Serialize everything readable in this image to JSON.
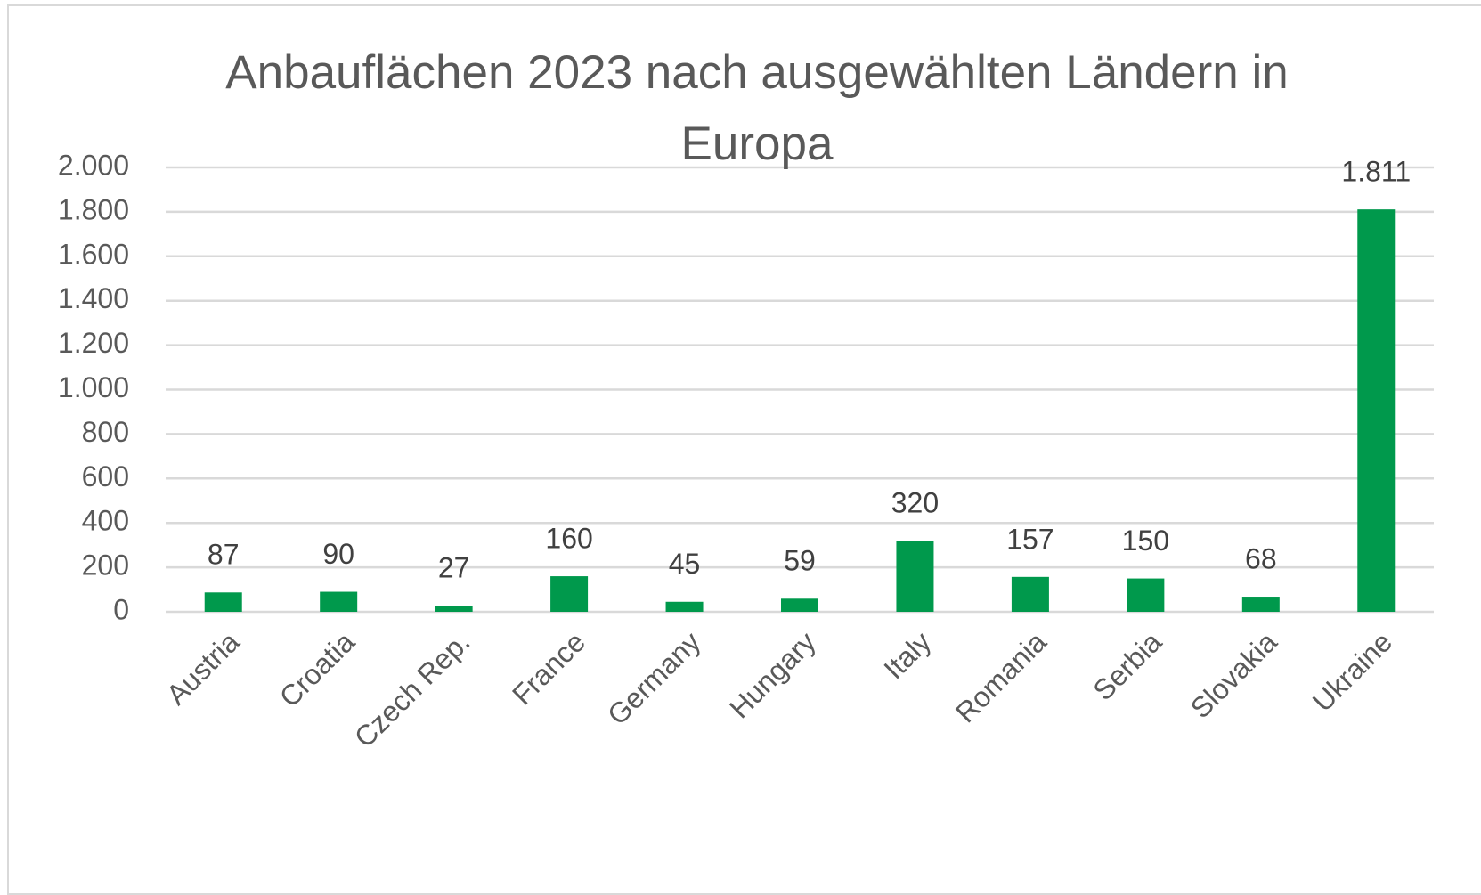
{
  "chart_data": {
    "type": "bar",
    "title": "Anbauflächen 2023 nach ausgewählten Ländern in Europa",
    "categories": [
      "Austria",
      "Croatia",
      "Czech Rep.",
      "France",
      "Germany",
      "Hungary",
      "Italy",
      "Romania",
      "Serbia",
      "Slovakia",
      "Ukraine"
    ],
    "values": [
      87,
      90,
      27,
      160,
      45,
      59,
      320,
      157,
      150,
      68,
      1811
    ],
    "value_labels": [
      "87",
      "90",
      "27",
      "160",
      "45",
      "59",
      "320",
      "157",
      "150",
      "68",
      "1.811"
    ],
    "color": "#00994c",
    "ylim": [
      0,
      2000
    ],
    "yticks": [
      0,
      200,
      400,
      600,
      800,
      {
        "value": 1000,
        "label": "1.000"
      },
      {
        "value": 1200,
        "label": "1.200"
      },
      {
        "value": 1400,
        "label": "1.400"
      },
      {
        "value": 1600,
        "label": "1.600"
      },
      {
        "value": 1800,
        "label": "1.800"
      },
      {
        "value": 2000,
        "label": "2.000"
      }
    ],
    "grid": true
  }
}
